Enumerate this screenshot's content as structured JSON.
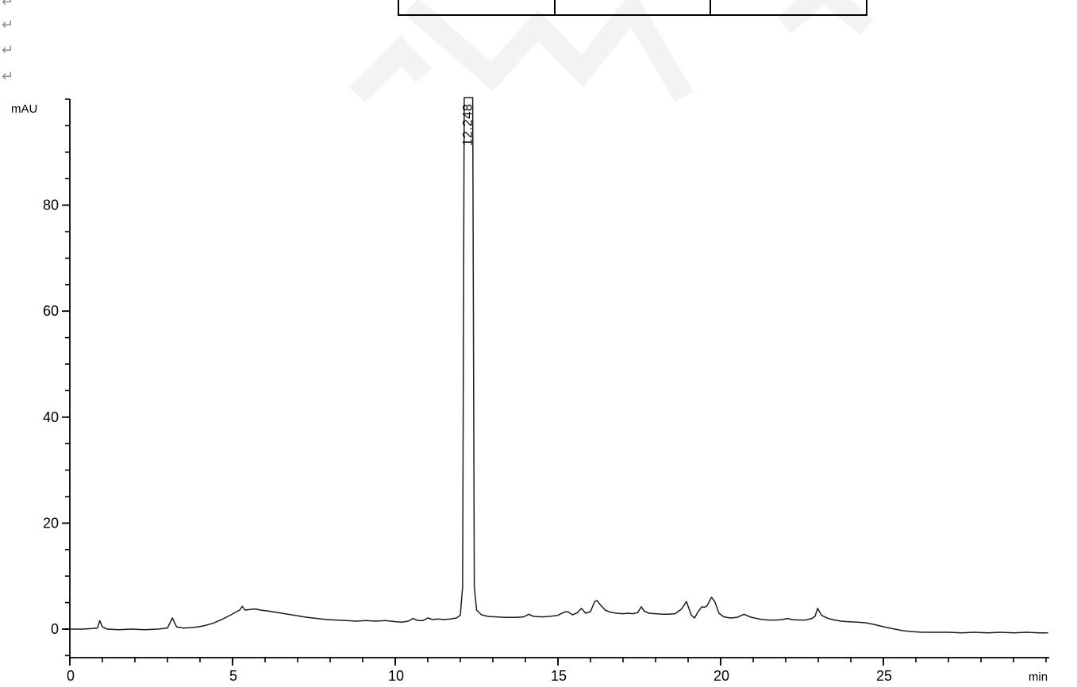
{
  "document": {
    "background": "#ffffff"
  },
  "formatting_marks": {
    "color": "#8e8e8e",
    "items": [
      "↵",
      "↵",
      "↵",
      "↵"
    ]
  },
  "table_fragment": {
    "border_color": "#000000",
    "cells": [
      "",
      "",
      ""
    ]
  },
  "watermark": {
    "color": "#f3f3f3"
  },
  "chart_data": {
    "type": "line",
    "title": "",
    "ylabel": "mAU",
    "xlabel": "min",
    "xlim": [
      0,
      30.1
    ],
    "ylim": [
      -5.4,
      100
    ],
    "grid": false,
    "legend": false,
    "axis_color": "#000000",
    "line_color": "#1c1c1c",
    "x_major_ticks": [
      0,
      5,
      10,
      15,
      20,
      25
    ],
    "x_tick_labels": [
      "0",
      "5",
      "10",
      "15",
      "20",
      "25"
    ],
    "x_minor_tick_step": 1,
    "x_minor_tick_max": 30,
    "y_major_ticks": [
      0,
      20,
      40,
      60,
      80
    ],
    "y_tick_labels": [
      "0",
      "20",
      "40",
      "60",
      "80"
    ],
    "y_minor_tick_step": 5,
    "y_minor_tick_min": -5,
    "y_minor_tick_max": 100,
    "peak_labels": [
      {
        "text": "12.248",
        "time_min": 12.248
      }
    ],
    "series": [
      {
        "name": "detector-signal",
        "units": {
          "x": "min",
          "y": "mAU"
        },
        "points": [
          [
            0,
            0
          ],
          [
            0.4,
            0
          ],
          [
            0.7,
            0.1
          ],
          [
            0.85,
            0.2
          ],
          [
            0.92,
            1.6
          ],
          [
            1.0,
            0.4
          ],
          [
            1.15,
            0
          ],
          [
            1.5,
            -0.1
          ],
          [
            1.9,
            0
          ],
          [
            2.3,
            -0.1
          ],
          [
            2.7,
            0
          ],
          [
            3.0,
            0.2
          ],
          [
            3.15,
            2.1
          ],
          [
            3.28,
            0.4
          ],
          [
            3.5,
            0.2
          ],
          [
            3.8,
            0.3
          ],
          [
            4.1,
            0.6
          ],
          [
            4.4,
            1.1
          ],
          [
            4.7,
            1.9
          ],
          [
            4.95,
            2.7
          ],
          [
            5.1,
            3.2
          ],
          [
            5.22,
            3.6
          ],
          [
            5.3,
            4.3
          ],
          [
            5.38,
            3.6
          ],
          [
            5.55,
            3.7
          ],
          [
            5.7,
            3.8
          ],
          [
            5.85,
            3.6
          ],
          [
            6.1,
            3.4
          ],
          [
            6.4,
            3.1
          ],
          [
            6.7,
            2.8
          ],
          [
            7.0,
            2.5
          ],
          [
            7.3,
            2.2
          ],
          [
            7.6,
            2.0
          ],
          [
            7.9,
            1.8
          ],
          [
            8.2,
            1.7
          ],
          [
            8.5,
            1.6
          ],
          [
            8.8,
            1.5
          ],
          [
            9.1,
            1.6
          ],
          [
            9.4,
            1.5
          ],
          [
            9.7,
            1.6
          ],
          [
            10.0,
            1.4
          ],
          [
            10.2,
            1.3
          ],
          [
            10.4,
            1.5
          ],
          [
            10.55,
            2.0
          ],
          [
            10.7,
            1.6
          ],
          [
            10.85,
            1.6
          ],
          [
            11.0,
            2.1
          ],
          [
            11.15,
            1.8
          ],
          [
            11.3,
            1.9
          ],
          [
            11.5,
            1.8
          ],
          [
            11.7,
            1.9
          ],
          [
            11.88,
            2.1
          ],
          [
            12.0,
            2.6
          ],
          [
            12.07,
            8
          ],
          [
            12.12,
            100.3
          ],
          [
            12.38,
            100.3
          ],
          [
            12.43,
            8
          ],
          [
            12.5,
            3.6
          ],
          [
            12.65,
            2.7
          ],
          [
            12.85,
            2.4
          ],
          [
            13.1,
            2.3
          ],
          [
            13.4,
            2.2
          ],
          [
            13.7,
            2.2
          ],
          [
            13.95,
            2.3
          ],
          [
            14.1,
            2.8
          ],
          [
            14.25,
            2.4
          ],
          [
            14.5,
            2.3
          ],
          [
            14.75,
            2.4
          ],
          [
            15.0,
            2.6
          ],
          [
            15.2,
            3.2
          ],
          [
            15.3,
            3.3
          ],
          [
            15.45,
            2.7
          ],
          [
            15.6,
            3.1
          ],
          [
            15.72,
            3.9
          ],
          [
            15.85,
            3.0
          ],
          [
            16.0,
            3.3
          ],
          [
            16.13,
            5.2
          ],
          [
            16.2,
            5.4
          ],
          [
            16.3,
            4.6
          ],
          [
            16.45,
            3.6
          ],
          [
            16.6,
            3.2
          ],
          [
            16.8,
            3.0
          ],
          [
            17.0,
            2.9
          ],
          [
            17.15,
            3.0
          ],
          [
            17.3,
            2.9
          ],
          [
            17.45,
            3.1
          ],
          [
            17.56,
            4.2
          ],
          [
            17.65,
            3.4
          ],
          [
            17.8,
            3.0
          ],
          [
            18.0,
            2.9
          ],
          [
            18.2,
            2.8
          ],
          [
            18.4,
            2.8
          ],
          [
            18.6,
            2.9
          ],
          [
            18.8,
            3.8
          ],
          [
            18.95,
            5.2
          ],
          [
            19.1,
            2.6
          ],
          [
            19.2,
            2.1
          ],
          [
            19.3,
            3.2
          ],
          [
            19.42,
            4.2
          ],
          [
            19.5,
            4.1
          ],
          [
            19.58,
            4.4
          ],
          [
            19.72,
            6.0
          ],
          [
            19.82,
            5.2
          ],
          [
            19.95,
            3.0
          ],
          [
            20.1,
            2.3
          ],
          [
            20.3,
            2.1
          ],
          [
            20.5,
            2.2
          ],
          [
            20.72,
            2.8
          ],
          [
            20.9,
            2.3
          ],
          [
            21.1,
            2.0
          ],
          [
            21.3,
            1.8
          ],
          [
            21.5,
            1.7
          ],
          [
            21.7,
            1.7
          ],
          [
            21.9,
            1.8
          ],
          [
            22.05,
            2.0
          ],
          [
            22.2,
            1.8
          ],
          [
            22.4,
            1.7
          ],
          [
            22.6,
            1.7
          ],
          [
            22.8,
            2.0
          ],
          [
            22.9,
            2.4
          ],
          [
            22.98,
            3.9
          ],
          [
            23.1,
            2.6
          ],
          [
            23.3,
            2.0
          ],
          [
            23.5,
            1.7
          ],
          [
            23.7,
            1.5
          ],
          [
            23.9,
            1.4
          ],
          [
            24.2,
            1.3
          ],
          [
            24.45,
            1.2
          ],
          [
            24.7,
            0.9
          ],
          [
            24.9,
            0.6
          ],
          [
            25.1,
            0.3
          ],
          [
            25.35,
            0
          ],
          [
            25.6,
            -0.3
          ],
          [
            25.9,
            -0.5
          ],
          [
            26.2,
            -0.6
          ],
          [
            26.6,
            -0.6
          ],
          [
            27.0,
            -0.6
          ],
          [
            27.4,
            -0.7
          ],
          [
            27.8,
            -0.6
          ],
          [
            28.2,
            -0.7
          ],
          [
            28.6,
            -0.6
          ],
          [
            29.0,
            -0.7
          ],
          [
            29.4,
            -0.6
          ],
          [
            29.8,
            -0.7
          ],
          [
            30.05,
            -0.7
          ]
        ]
      }
    ]
  }
}
